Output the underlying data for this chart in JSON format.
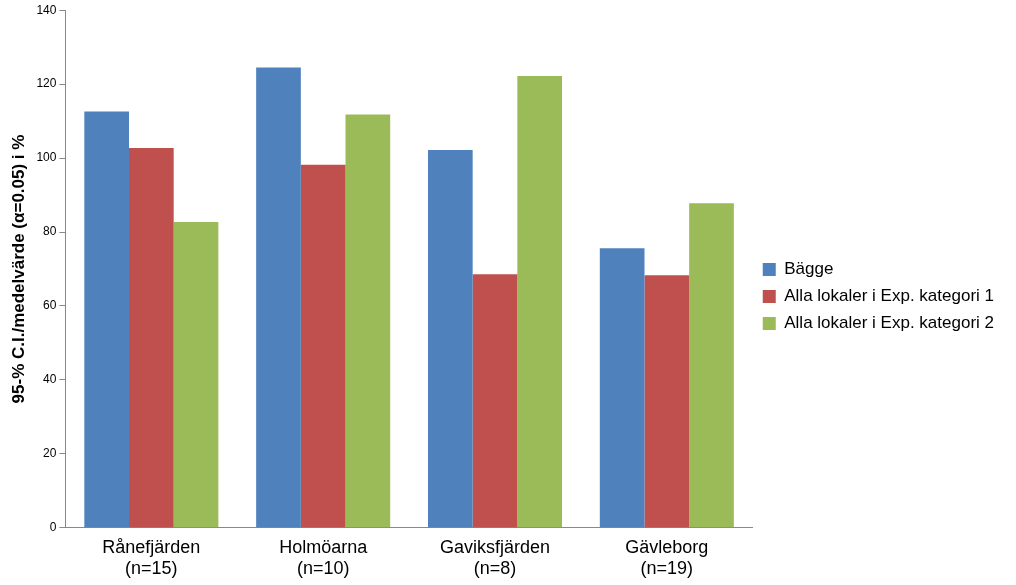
{
  "chart_data": {
    "type": "bar",
    "ylabel": "95-% C.I./medelvärde (α=0.05) i %",
    "categories": [
      "Rånefjärden\n(n=15)",
      "Holmöarna\n(n=10)",
      "Gaviksfjärden\n(n=8)",
      "Gävleborg\n(n=19)"
    ],
    "series": [
      {
        "name": "Bägge",
        "color": "#4f81bd",
        "values": [
          112.6,
          124.5,
          102.2,
          75.6
        ]
      },
      {
        "name": "Alla lokaler i Exp. kategori 1",
        "color": "#c0504d",
        "values": [
          102.7,
          98.2,
          68.6,
          68.3
        ]
      },
      {
        "name": "Alla lokaler i Exp. kategori 2",
        "color": "#9bbb59",
        "values": [
          82.7,
          111.8,
          122.2,
          87.8
        ]
      }
    ],
    "ylim": [
      0,
      140
    ],
    "yticks": [
      0,
      20,
      40,
      60,
      80,
      100,
      120,
      140
    ],
    "grid": false,
    "legend": "right"
  }
}
